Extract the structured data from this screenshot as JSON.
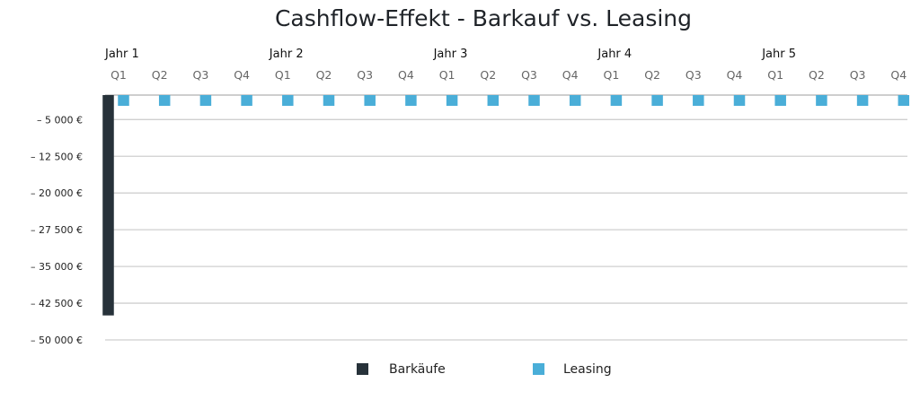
{
  "chart_data": {
    "type": "bar",
    "title": "Cashflow-Effekt - Barkauf vs. Leasing",
    "xlabel": "",
    "ylabel": "",
    "years": [
      "Jahr 1",
      "Jahr 2",
      "Jahr 3",
      "Jahr 4",
      "Jahr 5"
    ],
    "categories": [
      "Q1",
      "Q2",
      "Q3",
      "Q4",
      "Q1",
      "Q2",
      "Q3",
      "Q4",
      "Q1",
      "Q2",
      "Q3",
      "Q4",
      "Q1",
      "Q2",
      "Q3",
      "Q4",
      "Q1",
      "Q2",
      "Q3",
      "Q4"
    ],
    "series": [
      {
        "name": "Barkäufe",
        "color": "#27323a",
        "values": [
          -45000,
          0,
          0,
          0,
          0,
          0,
          0,
          0,
          0,
          0,
          0,
          0,
          0,
          0,
          0,
          0,
          0,
          0,
          0,
          0
        ]
      },
      {
        "name": "Leasing",
        "color": "#4aaed8",
        "values": [
          -2000,
          -2000,
          -2000,
          -2000,
          -2000,
          -2000,
          -2000,
          -2000,
          -2000,
          -2000,
          -2000,
          -2000,
          -2000,
          -2000,
          -2000,
          -2000,
          -2000,
          -2000,
          -2000,
          -2000
        ]
      }
    ],
    "ylim": [
      -50000,
      0
    ],
    "yticks": [
      -5000,
      -12500,
      -20000,
      -27500,
      -35000,
      -42500,
      -50000
    ],
    "ytick_labels": [
      "– 5 000 €",
      "– 12 500 €",
      "– 20 000 €",
      "– 27 500 €",
      "– 35 000 €",
      "– 42 500 €",
      "– 50 000 €"
    ],
    "grid": true,
    "legend": "bottom-center"
  }
}
